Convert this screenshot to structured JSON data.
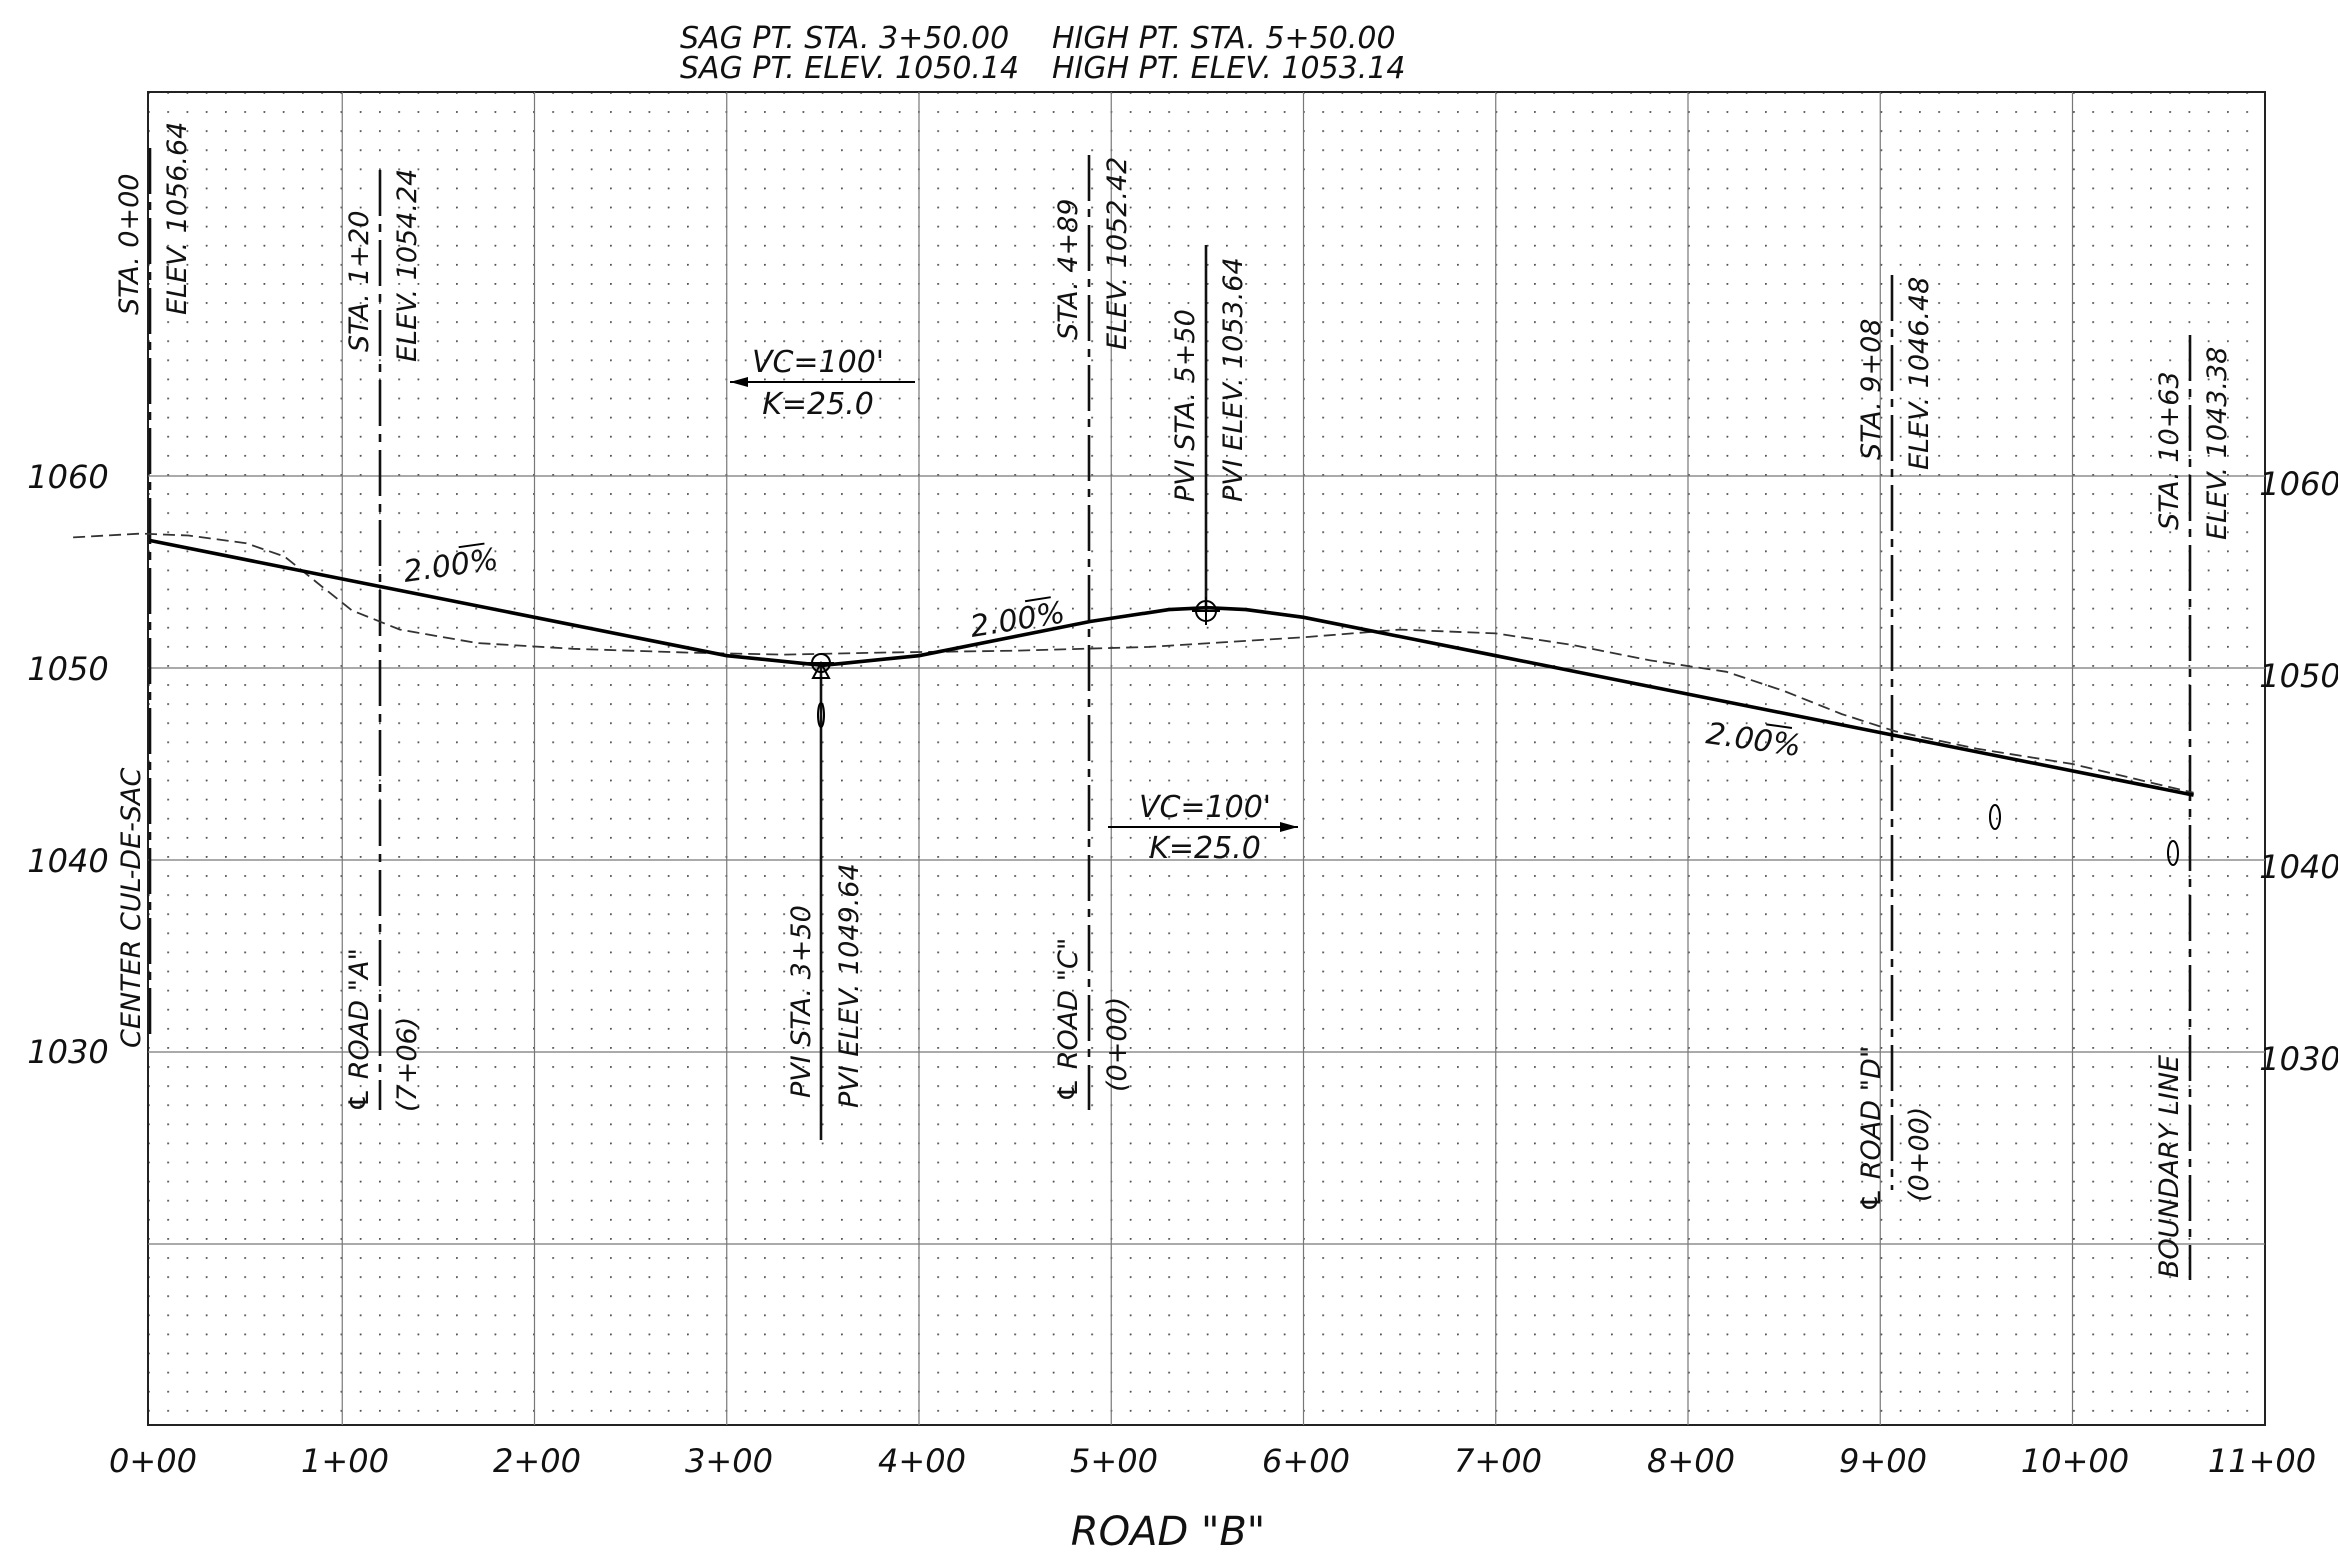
{
  "chart_data": {
    "type": "line",
    "xlabel": "ROAD \"B\"",
    "x_ticks": [
      "0+00",
      "1+00",
      "2+00",
      "3+00",
      "4+00",
      "5+00",
      "6+00",
      "7+00",
      "8+00",
      "9+00",
      "10+00",
      "11+00"
    ],
    "xlim": [
      0,
      1100
    ],
    "y_ticks_left": [
      "1060",
      "1050",
      "1040",
      "1030"
    ],
    "y_ticks_right": [
      "1060",
      "1050",
      "1040",
      "1030"
    ],
    "ylim": [
      1010,
      1064
    ],
    "grid": true,
    "series": [
      {
        "style": "solid",
        "x": [
          0,
          120,
          300,
          340,
          350,
          360,
          400,
          450,
          489,
          530,
          550,
          570,
          600,
          700,
          800,
          908,
          1063
        ],
        "y": [
          1056.64,
          1054.24,
          1050.64,
          1050.24,
          1050.14,
          1050.24,
          1050.64,
          1051.64,
          1052.42,
          1053.04,
          1053.14,
          1053.04,
          1052.64,
          1050.64,
          1048.64,
          1046.48,
          1043.38
        ]
      },
      {
        "style": "dashed",
        "x": [
          -40,
          -5,
          20,
          50,
          70,
          90,
          105,
          130,
          170,
          220,
          280,
          330,
          380,
          450,
          520,
          600,
          650,
          700,
          740,
          780,
          820,
          850,
          880,
          908,
          950,
          1000,
          1063
        ],
        "y": [
          1056.8,
          1057.0,
          1056.9,
          1056.5,
          1055.8,
          1054.2,
          1053.0,
          1052.0,
          1051.3,
          1051.0,
          1050.8,
          1050.7,
          1050.8,
          1050.9,
          1051.1,
          1051.6,
          1052.0,
          1051.8,
          1051.2,
          1050.4,
          1049.8,
          1048.8,
          1047.6,
          1046.7,
          1045.8,
          1045.0,
          1043.5
        ]
      }
    ]
  },
  "header": {
    "sag_sta": "SAG PT. STA. 3+50.00",
    "sag_elev": "SAG PT. ELEV. 1050.14",
    "high_sta": "HIGH PT. STA. 5+50.00",
    "high_elev": "HIGH PT. ELEV. 1053.14"
  },
  "stations": {
    "s000": [
      "STA. 0+00",
      "ELEV. 1056.64"
    ],
    "s120": [
      "STA. 1+20",
      "ELEV. 1054.24"
    ],
    "s489": [
      "STA. 4+89",
      "ELEV. 1052.42"
    ],
    "pvi550": [
      "PVI STA. 5+50",
      "PVI ELEV. 1053.64"
    ],
    "s908": [
      "STA. 9+08",
      "ELEV. 1046.48"
    ],
    "s1063": [
      "STA. 10+63",
      "ELEV. 1043.38"
    ],
    "pvi350": [
      "PVI STA. 3+50",
      "PVI ELEV. 1049.64"
    ]
  },
  "crossings": {
    "cul": "CENTER CUL-DE-SAC",
    "roadA": [
      "℄ ROAD \"A\"",
      "(7+06)"
    ],
    "roadC": [
      "℄ ROAD \"C\"",
      "(0+00)"
    ],
    "roadD": [
      "℄ ROAD \"D\"",
      "(0+00)"
    ],
    "boundary": "BOUNDARY LINE"
  },
  "curves": {
    "vc1": [
      "VC=100'",
      "K=25.0"
    ],
    "vc2": [
      "VC=100'",
      "K=25.0"
    ]
  },
  "grades": [
    "2.00%",
    "2.00%",
    "2.00%"
  ]
}
